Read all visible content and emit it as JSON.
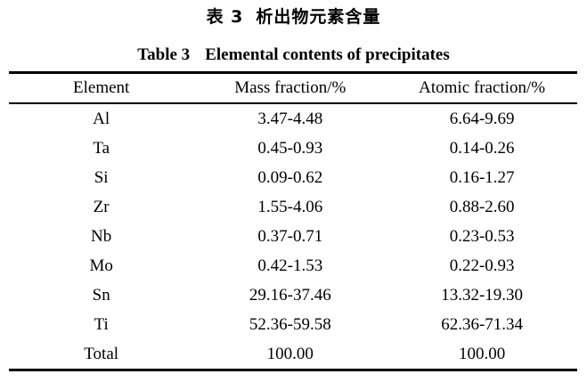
{
  "page": {
    "background": "#ffffff",
    "text_color": "#000000",
    "rule_color": "#000000"
  },
  "titles": {
    "zh_label": "表 3",
    "zh_title": "析出物元素含量",
    "en_label": "Table 3",
    "en_title": "Elemental contents of precipitates"
  },
  "table": {
    "columns": [
      "Element",
      "Mass fraction/%",
      "Atomic fraction/%"
    ],
    "rows": [
      [
        "Al",
        "3.47-4.48",
        "6.64-9.69"
      ],
      [
        "Ta",
        "0.45-0.93",
        "0.14-0.26"
      ],
      [
        "Si",
        "0.09-0.62",
        "0.16-1.27"
      ],
      [
        "Zr",
        "1.55-4.06",
        "0.88-2.60"
      ],
      [
        "Nb",
        "0.37-0.71",
        "0.23-0.53"
      ],
      [
        "Mo",
        "0.42-1.53",
        "0.22-0.93"
      ],
      [
        "Sn",
        "29.16-37.46",
        "13.32-19.30"
      ],
      [
        "Ti",
        "52.36-59.58",
        "62.36-71.34"
      ],
      [
        "Total",
        "100.00",
        "100.00"
      ]
    ]
  },
  "chart_data": {
    "type": "table",
    "title": "Table 3 Elemental contents of precipitates",
    "title_zh": "表 3 析出物元素含量",
    "columns": [
      "Element",
      "Mass fraction/%",
      "Atomic fraction/%"
    ],
    "rows": [
      [
        "Al",
        "3.47-4.48",
        "6.64-9.69"
      ],
      [
        "Ta",
        "0.45-0.93",
        "0.14-0.26"
      ],
      [
        "Si",
        "0.09-0.62",
        "0.16-1.27"
      ],
      [
        "Zr",
        "1.55-4.06",
        "0.88-2.60"
      ],
      [
        "Nb",
        "0.37-0.71",
        "0.23-0.53"
      ],
      [
        "Mo",
        "0.42-1.53",
        "0.22-0.93"
      ],
      [
        "Sn",
        "29.16-37.46",
        "13.32-19.30"
      ],
      [
        "Ti",
        "52.36-59.58",
        "62.36-71.34"
      ],
      [
        "Total",
        "100.00",
        "100.00"
      ]
    ]
  }
}
